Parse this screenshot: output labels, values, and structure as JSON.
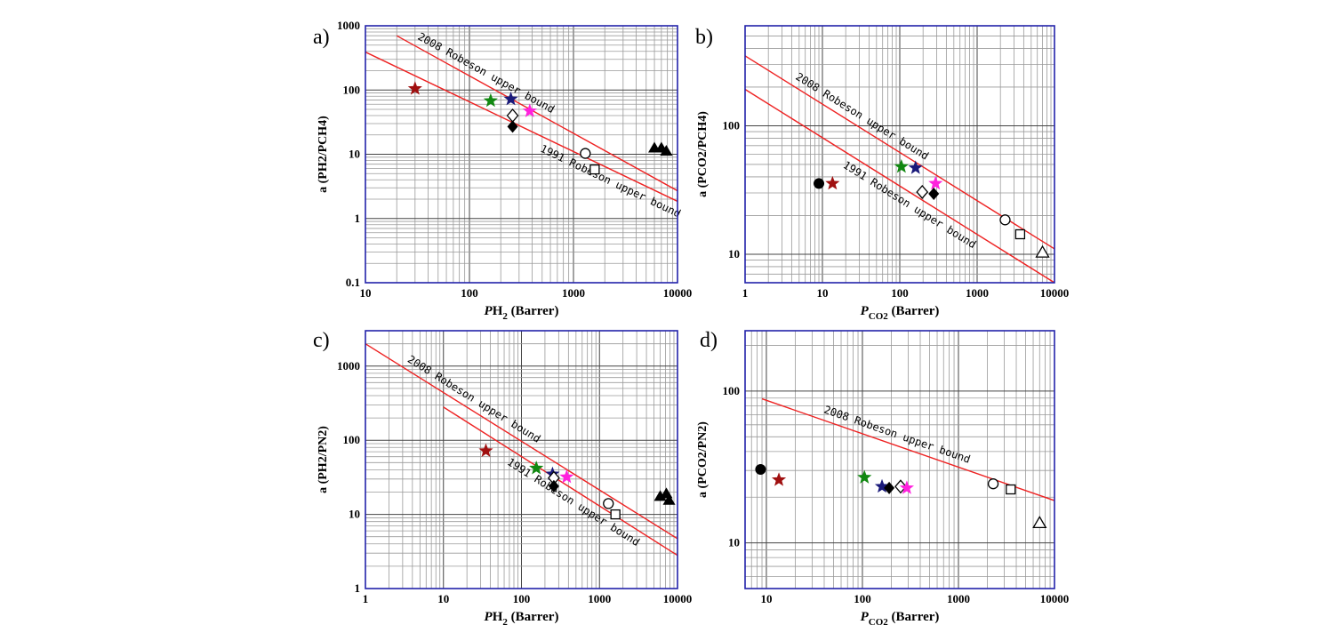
{
  "chart_data": [
    {
      "panel": "a)",
      "type": "scatter",
      "xscale": "log",
      "yscale": "log",
      "xlim": [
        10,
        10000
      ],
      "ylim": [
        0.1,
        1000
      ],
      "xticks": [
        "10",
        "100",
        "1000",
        "10000"
      ],
      "yticks": [
        "0.1",
        "1",
        "10",
        "100",
        "1000"
      ],
      "xlabel": {
        "pre": "P",
        "main": "H",
        "sub": "2",
        "post": " (Barrer)"
      },
      "ylabel": {
        "text": "a (PH2/PCH4)"
      },
      "lines": [
        {
          "label": "2008 Robeson upper bound",
          "x": [
            20,
            10000
          ],
          "y": [
            700,
            2.7
          ]
        },
        {
          "label": "1991 Robeson upper bound",
          "x": [
            10,
            10000
          ],
          "y": [
            390,
            1.85
          ]
        }
      ],
      "points": [
        {
          "x": 30,
          "y": 105,
          "marker": "star",
          "color": "#a01010"
        },
        {
          "x": 160,
          "y": 68,
          "marker": "star",
          "color": "#118811"
        },
        {
          "x": 250,
          "y": 72,
          "marker": "star",
          "color": "#1a1a7a"
        },
        {
          "x": 380,
          "y": 47,
          "marker": "star",
          "color": "#ff22dd"
        },
        {
          "x": 260,
          "y": 40,
          "marker": "diamond-open",
          "color": "#000000"
        },
        {
          "x": 260,
          "y": 27,
          "marker": "diamond",
          "color": "#000000"
        },
        {
          "x": 1300,
          "y": 10.3,
          "marker": "circle-open",
          "color": "#000000"
        },
        {
          "x": 1600,
          "y": 5.8,
          "marker": "square-open",
          "color": "#000000"
        },
        {
          "x": 6000,
          "y": 12.5,
          "marker": "triangle",
          "color": "#000000"
        },
        {
          "x": 7000,
          "y": 12.5,
          "marker": "triangle",
          "color": "#000000"
        },
        {
          "x": 7800,
          "y": 11.2,
          "marker": "triangle",
          "color": "#000000"
        }
      ]
    },
    {
      "panel": "b)",
      "type": "scatter",
      "xscale": "log",
      "yscale": "log",
      "xlim": [
        1,
        10000
      ],
      "ylim": [
        6,
        600
      ],
      "xticks": [
        "1",
        "10",
        "100",
        "1000",
        "10000"
      ],
      "yticks": [
        "10",
        "100"
      ],
      "xlabel": {
        "pre": "",
        "main": "P",
        "sub": "CO2",
        "post": " (Barrer)"
      },
      "ylabel": {
        "text": "a (PCO2/PCH4)"
      },
      "lines": [
        {
          "label": "2008 Robeson upper bound",
          "x": [
            1,
            10000
          ],
          "y": [
            350,
            11
          ]
        },
        {
          "label": "1991 Robeson upper bound",
          "x": [
            1,
            10000
          ],
          "y": [
            192,
            6
          ]
        }
      ],
      "points": [
        {
          "x": 9,
          "y": 35.5,
          "marker": "circle",
          "color": "#000000"
        },
        {
          "x": 13.5,
          "y": 35.5,
          "marker": "star",
          "color": "#a01010"
        },
        {
          "x": 105,
          "y": 48,
          "marker": "star",
          "color": "#118811"
        },
        {
          "x": 160,
          "y": 47,
          "marker": "star",
          "color": "#1a1a7a"
        },
        {
          "x": 290,
          "y": 35.5,
          "marker": "star",
          "color": "#ff22dd"
        },
        {
          "x": 195,
          "y": 30.5,
          "marker": "diamond-open",
          "color": "#000000"
        },
        {
          "x": 275,
          "y": 29.5,
          "marker": "diamond",
          "color": "#000000"
        },
        {
          "x": 2300,
          "y": 18.5,
          "marker": "circle-open",
          "color": "#000000"
        },
        {
          "x": 3600,
          "y": 14.3,
          "marker": "square-open",
          "color": "#000000"
        },
        {
          "x": 7000,
          "y": 10.3,
          "marker": "triangle-open",
          "color": "#000000"
        }
      ]
    },
    {
      "panel": "c)",
      "type": "scatter",
      "xscale": "log",
      "yscale": "log",
      "xlim": [
        1,
        10000
      ],
      "ylim": [
        1,
        3000
      ],
      "xticks": [
        "1",
        "10",
        "100",
        "1000",
        "10000"
      ],
      "yticks": [
        "1",
        "10",
        "100",
        "1000"
      ],
      "xlabel": {
        "pre": "P",
        "main": "H",
        "sub": "2",
        "post": " (Barrer)"
      },
      "ylabel": {
        "text": "a (PH2/PN2)"
      },
      "lines": [
        {
          "label": "2008 Robeson upper bound",
          "x": [
            1,
            10000
          ],
          "y": [
            2000,
            4.7
          ]
        },
        {
          "label": "1991 Robeson upper bound",
          "x": [
            10,
            10000
          ],
          "y": [
            280,
            2.8
          ]
        }
      ],
      "points": [
        {
          "x": 35,
          "y": 72,
          "marker": "star",
          "color": "#a01010"
        },
        {
          "x": 155,
          "y": 42,
          "marker": "star",
          "color": "#118811"
        },
        {
          "x": 250,
          "y": 35,
          "marker": "star",
          "color": "#1a1a7a"
        },
        {
          "x": 380,
          "y": 32,
          "marker": "star",
          "color": "#ff22dd"
        },
        {
          "x": 260,
          "y": 31,
          "marker": "diamond-open",
          "color": "#000000"
        },
        {
          "x": 260,
          "y": 24,
          "marker": "diamond",
          "color": "#000000"
        },
        {
          "x": 1300,
          "y": 14,
          "marker": "circle-open",
          "color": "#000000"
        },
        {
          "x": 1600,
          "y": 10,
          "marker": "square-open",
          "color": "#000000"
        },
        {
          "x": 6000,
          "y": 17.5,
          "marker": "triangle",
          "color": "#000000"
        },
        {
          "x": 7200,
          "y": 19,
          "marker": "triangle",
          "color": "#000000"
        },
        {
          "x": 7800,
          "y": 15.5,
          "marker": "triangle",
          "color": "#000000"
        }
      ]
    },
    {
      "panel": "d)",
      "type": "scatter",
      "xscale": "log",
      "yscale": "log",
      "xlim": [
        6,
        10000
      ],
      "ylim": [
        5,
        250
      ],
      "xticks": [
        "10",
        "100",
        "1000",
        "10000"
      ],
      "yticks": [
        "10",
        "100"
      ],
      "xlabel": {
        "pre": "",
        "main": "P",
        "sub": "CO2",
        "post": " (Barrer)"
      },
      "ylabel": {
        "text": "a (PCO2/PN2)"
      },
      "lines": [
        {
          "label": "2008 Robeson upper bound",
          "x": [
            9,
            10000
          ],
          "y": [
            89,
            19
          ]
        }
      ],
      "points": [
        {
          "x": 8.7,
          "y": 30.5,
          "marker": "circle",
          "color": "#000000"
        },
        {
          "x": 13.5,
          "y": 26,
          "marker": "star",
          "color": "#a01010"
        },
        {
          "x": 105,
          "y": 27,
          "marker": "star",
          "color": "#118811"
        },
        {
          "x": 160,
          "y": 23.5,
          "marker": "star",
          "color": "#1a1a7a"
        },
        {
          "x": 190,
          "y": 23,
          "marker": "diamond",
          "color": "#000000"
        },
        {
          "x": 250,
          "y": 23.5,
          "marker": "diamond-open",
          "color": "#000000"
        },
        {
          "x": 290,
          "y": 23,
          "marker": "star",
          "color": "#ff22dd"
        },
        {
          "x": 2300,
          "y": 24.5,
          "marker": "circle-open",
          "color": "#000000"
        },
        {
          "x": 3500,
          "y": 22.5,
          "marker": "square-open",
          "color": "#000000"
        },
        {
          "x": 7000,
          "y": 13.5,
          "marker": "triangle-open",
          "color": "#000000"
        }
      ]
    }
  ]
}
